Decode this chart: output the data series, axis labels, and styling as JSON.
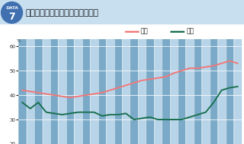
{
  "title": "岡山県の大学等進学率の年次変化",
  "josei": [
    42,
    41.5,
    41,
    40.5,
    40,
    39.5,
    39,
    39.5,
    40,
    40.5,
    41,
    42,
    43,
    44,
    45,
    46,
    46.5,
    47,
    47.5,
    49,
    50,
    51,
    51,
    51.5,
    52,
    53,
    54,
    53
  ],
  "danshi": [
    37,
    34.5,
    37,
    33,
    32.5,
    32,
    32.5,
    33,
    33,
    33,
    31.5,
    32,
    32,
    32.5,
    30,
    30.5,
    31,
    30,
    30,
    30,
    30,
    31,
    32,
    33,
    37,
    42,
    43,
    43.5
  ],
  "josei_color": "#f07878",
  "danshi_color": "#1a7050",
  "bg_color_dark": "#7aaac8",
  "bg_color_light": "#b8d4e8",
  "grid_color": "#ffffff",
  "ylim": [
    20,
    63
  ],
  "yticks": [
    20,
    30,
    40,
    50,
    60
  ],
  "legend_josei": "女子",
  "legend_danshi": "男子",
  "header_bg": "#4070b0",
  "title_bg": "#c8dff0",
  "badge_color": "#4070b0"
}
